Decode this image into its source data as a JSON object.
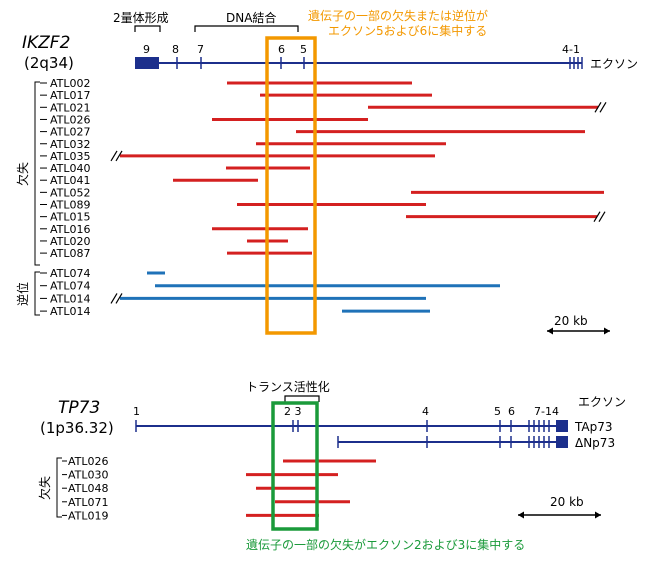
{
  "ikzf2": {
    "gene": "IKZF2",
    "locus": "(2q34)",
    "exon_word": "エクソン",
    "domain_dimer": "2量体形成",
    "domain_dna": "DNA結合",
    "exons": [
      "9",
      "8",
      "7",
      "6",
      "5",
      "4-1"
    ],
    "note": [
      "遺伝子の一部の欠失または逆位が",
      "エクソン5および6に集中する"
    ],
    "group_deletion": "欠失",
    "group_inversion": "逆位",
    "scale": "20 kb",
    "deletion_rows": [
      {
        "name": "ATL002",
        "segments": [
          [
            227,
            412
          ]
        ]
      },
      {
        "name": "ATL017",
        "segments": [
          [
            260,
            432
          ]
        ]
      },
      {
        "name": "ATL021",
        "segments": [
          [
            368,
            598
          ]
        ],
        "break_right": true
      },
      {
        "name": "ATL026",
        "segments": [
          [
            212,
            368
          ]
        ]
      },
      {
        "name": "ATL027",
        "segments": [
          [
            296,
            585
          ]
        ]
      },
      {
        "name": "ATL032",
        "segments": [
          [
            256,
            446
          ]
        ]
      },
      {
        "name": "ATL035",
        "segments": [
          [
            120,
            435
          ]
        ],
        "break_left": true
      },
      {
        "name": "ATL040",
        "segments": [
          [
            226,
            310
          ]
        ]
      },
      {
        "name": "ATL041",
        "segments": [
          [
            173,
            258
          ]
        ]
      },
      {
        "name": "ATL052",
        "segments": [
          [
            411,
            604
          ]
        ]
      },
      {
        "name": "ATL089",
        "segments": [
          [
            237,
            426
          ]
        ]
      },
      {
        "name": "ATL015",
        "segments": [
          [
            406,
            597
          ]
        ],
        "break_right": true
      },
      {
        "name": "ATL016",
        "segments": [
          [
            212,
            308
          ]
        ]
      },
      {
        "name": "ATL020",
        "segments": [
          [
            247,
            288
          ]
        ]
      },
      {
        "name": "ATL087",
        "segments": [
          [
            227,
            312
          ]
        ]
      }
    ],
    "inversion_rows": [
      {
        "name": "ATL074",
        "segments": [
          [
            147,
            165
          ]
        ]
      },
      {
        "name": "ATL074",
        "segments": [
          [
            155,
            500
          ]
        ]
      },
      {
        "name": "ATL014",
        "segments": [
          [
            120,
            426
          ]
        ],
        "break_left": true
      },
      {
        "name": "ATL014",
        "segments": [
          [
            342,
            430
          ]
        ]
      }
    ]
  },
  "tp73": {
    "gene": "TP73",
    "locus": "(1p36.32)",
    "exon_word": "エクソン",
    "domain_ta": "トランス活性化",
    "exons": [
      "1",
      "2 3",
      "4",
      "5",
      "6",
      "7-14"
    ],
    "isoform_ta": "TAp73",
    "isoform_dn": "ΔNp73",
    "note": "遺伝子の一部の欠失がエクソン2および3に集中する",
    "group_deletion": "欠失",
    "scale": "20 kb",
    "deletion_rows": [
      {
        "name": "ATL026",
        "segments": [
          [
            283,
            376
          ]
        ]
      },
      {
        "name": "ATL030",
        "segments": [
          [
            246,
            338
          ]
        ]
      },
      {
        "name": "ATL048",
        "segments": [
          [
            256,
            318
          ]
        ]
      },
      {
        "name": "ATL071",
        "segments": [
          [
            275,
            350
          ]
        ]
      },
      {
        "name": "ATL019",
        "segments": [
          [
            246,
            319
          ]
        ]
      }
    ]
  },
  "colors": {
    "gene_line": "#1c2f8c",
    "deletion": "#d42020",
    "inversion": "#1f72b8",
    "highlight_orange": "#f39800",
    "highlight_green": "#1a9a3a"
  }
}
